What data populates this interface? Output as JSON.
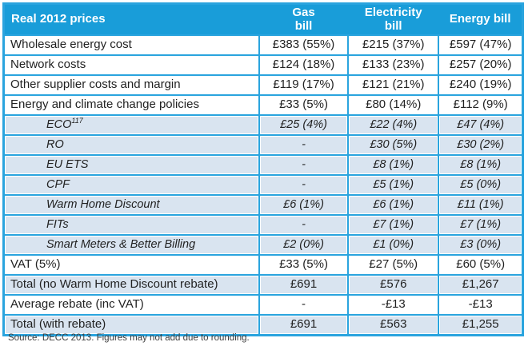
{
  "chart_data": {
    "type": "table",
    "title": "Real 2012 prices",
    "columns": [
      "Real 2012 prices",
      "Gas bill",
      "Electricity bill",
      "Energy bill"
    ],
    "rows": [
      {
        "label": "Wholesale energy cost",
        "style": "main",
        "values": [
          "£383 (55%)",
          "£215 (37%)",
          "£597 (47%)"
        ]
      },
      {
        "label": "Network costs",
        "style": "main",
        "values": [
          "£124 (18%)",
          "£133 (23%)",
          "£257 (20%)"
        ]
      },
      {
        "label": "Other supplier costs and margin",
        "style": "main",
        "values": [
          "£119 (17%)",
          "£121 (21%)",
          "£240 (19%)"
        ]
      },
      {
        "label": "Energy and climate change policies",
        "style": "main",
        "values": [
          "£33 (5%)",
          "£80 (14%)",
          "£112 (9%)"
        ]
      },
      {
        "label": "ECO",
        "sup": "117",
        "style": "sub",
        "values": [
          "£25 (4%)",
          "£22 (4%)",
          "£47 (4%)"
        ]
      },
      {
        "label": "RO",
        "style": "sub",
        "values": [
          "-",
          "£30 (5%)",
          "£30 (2%)"
        ]
      },
      {
        "label": "EU ETS",
        "style": "sub",
        "values": [
          "-",
          "£8 (1%)",
          "£8 (1%)"
        ]
      },
      {
        "label": "CPF",
        "style": "sub",
        "values": [
          "-",
          "£5 (1%)",
          "£5 (0%)"
        ]
      },
      {
        "label": "Warm Home Discount",
        "style": "sub",
        "values": [
          "£6 (1%)",
          "£6 (1%)",
          "£11 (1%)"
        ]
      },
      {
        "label": "FITs",
        "style": "sub",
        "values": [
          "-",
          "£7 (1%)",
          "£7 (1%)"
        ]
      },
      {
        "label": "Smart Meters & Better Billing",
        "style": "sub",
        "values": [
          "£2 (0%)",
          "£1 (0%)",
          "£3 (0%)"
        ]
      },
      {
        "label": "VAT (5%)",
        "style": "main",
        "values": [
          "£33 (5%)",
          "£27 (5%)",
          "£60 (5%)"
        ]
      },
      {
        "label": "Total (no Warm Home Discount rebate)",
        "style": "total",
        "values": [
          "£691",
          "£576",
          "£1,267"
        ]
      },
      {
        "label": "Average rebate (inc VAT)",
        "style": "main",
        "values": [
          "-",
          "-£13",
          "-£13"
        ]
      },
      {
        "label": "Total (with rebate)",
        "style": "total",
        "values": [
          "£691",
          "£563",
          "£1,255"
        ]
      }
    ],
    "source_note": "Source: DECC 2013. Figures may not add due to rounding."
  },
  "header_display": {
    "row_label_col": "Real 2012 prices",
    "value_cols": [
      "Gas\nbill",
      "Electricity\nbill",
      "Energy bill"
    ]
  },
  "colors": {
    "header_bg": "#199dd9",
    "border": "#2aa4de",
    "shaded_row_bg": "#d9e4f0",
    "header_text": "#ffffff",
    "body_text": "#222222"
  }
}
